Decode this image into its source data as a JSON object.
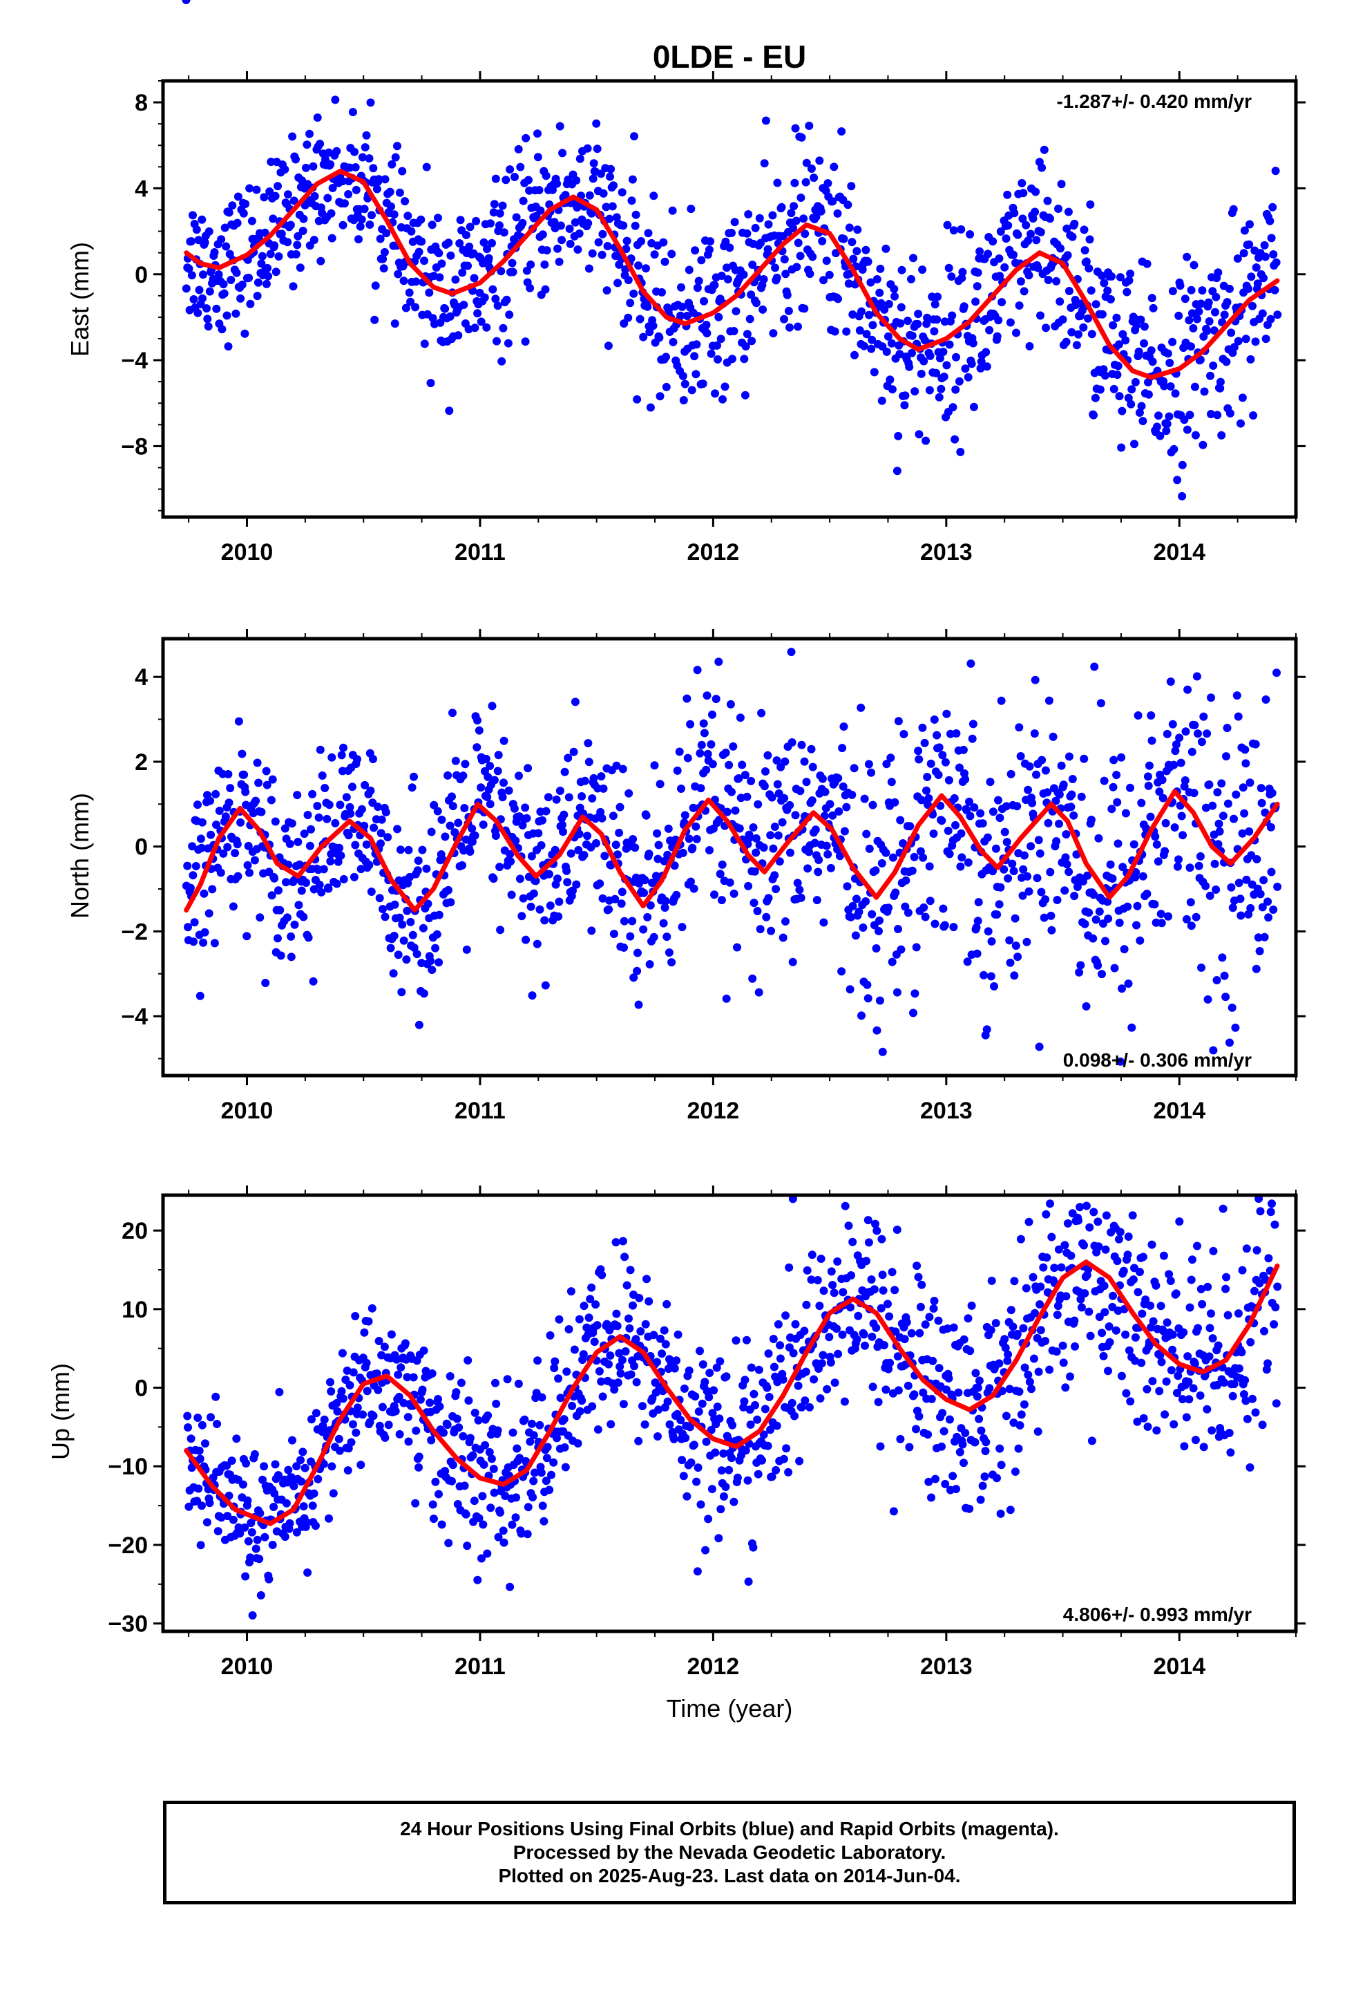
{
  "title": "0LDE - EU",
  "xlabel": "Time (year)",
  "caption": {
    "line1": "24 Hour Positions Using Final Orbits (blue) and Rapid Orbits (magenta).",
    "line2": "Processed by the Nevada Geodetic Laboratory.",
    "line3": "Plotted on 2025-Aug-23. Last data on 2014-Jun-04."
  },
  "colors": {
    "points": "#0000ff",
    "fit": "#ff0000",
    "frame": "#000000"
  },
  "chart_data": [
    {
      "type": "scatter",
      "ylabel": "East (mm)",
      "rate": "-1.287+/- 0.420 mm/yr",
      "xlim": [
        2009.64,
        2014.5
      ],
      "ylim": [
        -11.3,
        9.0
      ],
      "yticks": [
        8,
        4,
        0,
        -4,
        -8
      ],
      "ytick_labels": [
        "8",
        "4",
        "0",
        "−4",
        "−8"
      ],
      "xticks": [
        2010,
        2011,
        2012,
        2013,
        2014
      ],
      "data_start": 2009.74,
      "data_end": 2014.42,
      "series": [
        {
          "name": "fit",
          "points": [
            [
              2009.74,
              1.0
            ],
            [
              2009.8,
              0.5
            ],
            [
              2009.88,
              0.3
            ],
            [
              2010.0,
              0.9
            ],
            [
              2010.1,
              1.8
            ],
            [
              2010.2,
              3.0
            ],
            [
              2010.3,
              4.2
            ],
            [
              2010.4,
              4.8
            ],
            [
              2010.5,
              4.3
            ],
            [
              2010.6,
              2.5
            ],
            [
              2010.7,
              0.5
            ],
            [
              2010.8,
              -0.6
            ],
            [
              2010.88,
              -0.9
            ],
            [
              2011.0,
              -0.4
            ],
            [
              2011.1,
              0.6
            ],
            [
              2011.2,
              1.8
            ],
            [
              2011.3,
              3.0
            ],
            [
              2011.4,
              3.6
            ],
            [
              2011.5,
              3.0
            ],
            [
              2011.6,
              1.2
            ],
            [
              2011.7,
              -0.8
            ],
            [
              2011.8,
              -2.0
            ],
            [
              2011.88,
              -2.3
            ],
            [
              2012.0,
              -1.8
            ],
            [
              2012.1,
              -1.0
            ],
            [
              2012.2,
              0.2
            ],
            [
              2012.3,
              1.4
            ],
            [
              2012.4,
              2.3
            ],
            [
              2012.5,
              1.9
            ],
            [
              2012.6,
              0.2
            ],
            [
              2012.7,
              -1.8
            ],
            [
              2012.8,
              -3.0
            ],
            [
              2012.88,
              -3.5
            ],
            [
              2013.0,
              -3.0
            ],
            [
              2013.1,
              -2.2
            ],
            [
              2013.2,
              -1.0
            ],
            [
              2013.3,
              0.2
            ],
            [
              2013.4,
              1.0
            ],
            [
              2013.5,
              0.5
            ],
            [
              2013.6,
              -1.3
            ],
            [
              2013.7,
              -3.3
            ],
            [
              2013.8,
              -4.5
            ],
            [
              2013.88,
              -4.8
            ],
            [
              2014.0,
              -4.4
            ],
            [
              2014.1,
              -3.6
            ],
            [
              2014.2,
              -2.4
            ],
            [
              2014.3,
              -1.2
            ],
            [
              2014.42,
              -0.3
            ]
          ]
        }
      ],
      "scatter_spread": [
        1.6,
        1.9,
        2.1,
        2.2,
        2.3
      ]
    },
    {
      "type": "scatter",
      "ylabel": "North (mm)",
      "rate": "0.098+/- 0.306 mm/yr",
      "xlim": [
        2009.64,
        2014.5
      ],
      "ylim": [
        -5.4,
        4.9
      ],
      "yticks": [
        4,
        2,
        0,
        -2,
        -4
      ],
      "ytick_labels": [
        "4",
        "2",
        "0",
        "−2",
        "−4"
      ],
      "xticks": [
        2010,
        2011,
        2012,
        2013,
        2014
      ],
      "data_start": 2009.74,
      "data_end": 2014.42,
      "series": [
        {
          "name": "fit",
          "points": [
            [
              2009.74,
              -1.5
            ],
            [
              2009.8,
              -0.9
            ],
            [
              2009.88,
              0.2
            ],
            [
              2009.97,
              0.9
            ],
            [
              2010.05,
              0.4
            ],
            [
              2010.13,
              -0.4
            ],
            [
              2010.22,
              -0.7
            ],
            [
              2010.32,
              0.0
            ],
            [
              2010.44,
              0.6
            ],
            [
              2010.53,
              0.2
            ],
            [
              2010.62,
              -0.8
            ],
            [
              2010.72,
              -1.5
            ],
            [
              2010.8,
              -1.0
            ],
            [
              2010.9,
              0.1
            ],
            [
              2010.99,
              1.0
            ],
            [
              2011.07,
              0.6
            ],
            [
              2011.16,
              -0.2
            ],
            [
              2011.24,
              -0.7
            ],
            [
              2011.34,
              -0.2
            ],
            [
              2011.44,
              0.7
            ],
            [
              2011.52,
              0.3
            ],
            [
              2011.6,
              -0.6
            ],
            [
              2011.7,
              -1.4
            ],
            [
              2011.78,
              -0.8
            ],
            [
              2011.88,
              0.4
            ],
            [
              2011.98,
              1.1
            ],
            [
              2012.06,
              0.6
            ],
            [
              2012.15,
              -0.2
            ],
            [
              2012.22,
              -0.6
            ],
            [
              2012.32,
              0.1
            ],
            [
              2012.43,
              0.8
            ],
            [
              2012.51,
              0.4
            ],
            [
              2012.6,
              -0.5
            ],
            [
              2012.7,
              -1.2
            ],
            [
              2012.78,
              -0.6
            ],
            [
              2012.88,
              0.5
            ],
            [
              2012.98,
              1.2
            ],
            [
              2013.06,
              0.7
            ],
            [
              2013.15,
              -0.1
            ],
            [
              2013.22,
              -0.5
            ],
            [
              2013.32,
              0.2
            ],
            [
              2013.45,
              1.0
            ],
            [
              2013.52,
              0.6
            ],
            [
              2013.6,
              -0.4
            ],
            [
              2013.7,
              -1.2
            ],
            [
              2013.78,
              -0.7
            ],
            [
              2013.88,
              0.4
            ],
            [
              2013.98,
              1.3
            ],
            [
              2014.06,
              0.8
            ],
            [
              2014.14,
              0.0
            ],
            [
              2014.22,
              -0.4
            ],
            [
              2014.32,
              0.2
            ],
            [
              2014.42,
              1.0
            ]
          ]
        }
      ],
      "scatter_spread": [
        1.0,
        1.2,
        1.4,
        1.6,
        1.8
      ]
    },
    {
      "type": "scatter",
      "ylabel": "Up (mm)",
      "rate": "4.806+/- 0.993 mm/yr",
      "xlim": [
        2009.64,
        2014.5
      ],
      "ylim": [
        -31,
        24.5
      ],
      "yticks": [
        20,
        10,
        0,
        -10,
        -20,
        -30
      ],
      "ytick_labels": [
        "20",
        "10",
        "0",
        "−10",
        "−20",
        "−30"
      ],
      "xticks": [
        2010,
        2011,
        2012,
        2013,
        2014
      ],
      "data_start": 2009.74,
      "data_end": 2014.42,
      "series": [
        {
          "name": "fit",
          "points": [
            [
              2009.74,
              -8.0
            ],
            [
              2009.85,
              -12.5
            ],
            [
              2009.95,
              -15.5
            ],
            [
              2010.1,
              -17.3
            ],
            [
              2010.2,
              -15.5
            ],
            [
              2010.3,
              -10.0
            ],
            [
              2010.4,
              -4.0
            ],
            [
              2010.5,
              0.5
            ],
            [
              2010.6,
              1.5
            ],
            [
              2010.7,
              -1.0
            ],
            [
              2010.8,
              -5.5
            ],
            [
              2010.9,
              -9.0
            ],
            [
              2011.0,
              -11.5
            ],
            [
              2011.1,
              -12.3
            ],
            [
              2011.2,
              -10.5
            ],
            [
              2011.3,
              -5.5
            ],
            [
              2011.4,
              0.0
            ],
            [
              2011.5,
              4.5
            ],
            [
              2011.6,
              6.5
            ],
            [
              2011.7,
              4.5
            ],
            [
              2011.8,
              0.0
            ],
            [
              2011.9,
              -4.0
            ],
            [
              2012.0,
              -6.5
            ],
            [
              2012.1,
              -7.5
            ],
            [
              2012.2,
              -5.5
            ],
            [
              2012.3,
              -1.0
            ],
            [
              2012.4,
              4.5
            ],
            [
              2012.5,
              9.5
            ],
            [
              2012.6,
              11.3
            ],
            [
              2012.7,
              9.5
            ],
            [
              2012.8,
              5.0
            ],
            [
              2012.9,
              1.0
            ],
            [
              2013.0,
              -1.5
            ],
            [
              2013.1,
              -2.8
            ],
            [
              2013.2,
              -1.0
            ],
            [
              2013.3,
              3.5
            ],
            [
              2013.4,
              9.0
            ],
            [
              2013.5,
              14.0
            ],
            [
              2013.6,
              16.0
            ],
            [
              2013.7,
              14.0
            ],
            [
              2013.8,
              9.5
            ],
            [
              2013.9,
              5.5
            ],
            [
              2014.0,
              3.0
            ],
            [
              2014.1,
              2.0
            ],
            [
              2014.2,
              3.5
            ],
            [
              2014.3,
              8.0
            ],
            [
              2014.42,
              15.5
            ]
          ]
        }
      ],
      "scatter_spread": [
        4.5,
        5.5,
        6.0,
        7.0,
        8.0
      ]
    }
  ]
}
